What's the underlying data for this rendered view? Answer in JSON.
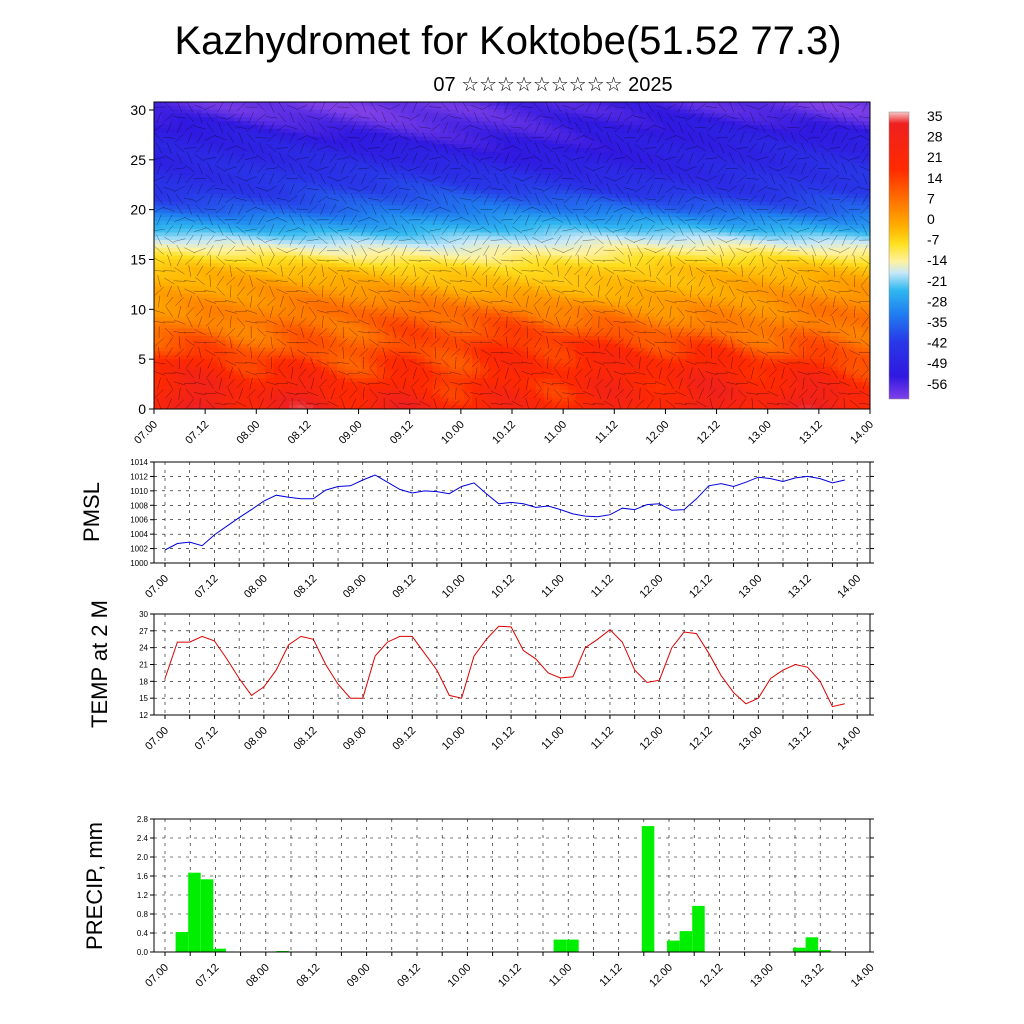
{
  "title": "Kazhydromet for Koktobe(51.52 77.3)",
  "subtitle": "07 ☆☆☆☆☆☆☆☆☆ 2025",
  "chart_data": [
    {
      "type": "heatmap",
      "name": "temperature-wind cross-section",
      "x_tick_labels": [
        "07.00",
        "07.12",
        "08.00",
        "08.12",
        "09.00",
        "09.12",
        "10.00",
        "10.12",
        "11.00",
        "11.12",
        "12.00",
        "12.12",
        "13.00",
        "13.12",
        "14.00"
      ],
      "y_ticks": [
        0,
        5,
        10,
        15,
        20,
        25,
        30
      ],
      "ylim": [
        0,
        30.8
      ],
      "colorbar_labels": [
        "35",
        "28",
        "21",
        "14",
        "7",
        "0",
        "-7",
        "-14",
        "-21",
        "-28",
        "-35",
        "-42",
        "-49",
        "-56"
      ],
      "colorbar_range": [
        -63,
        38
      ],
      "approx_temperature_by_level": {
        "levels": [
          0,
          5,
          10,
          14,
          16,
          18,
          20,
          22,
          25,
          30
        ],
        "temps": [
          25,
          19,
          11,
          1,
          -10,
          -25,
          -38,
          -45,
          -52,
          -60
        ]
      },
      "wind_barbs": true
    },
    {
      "type": "line",
      "ylabel": "PMSL",
      "color": "#0000dd",
      "ylim": [
        1000,
        1014
      ],
      "y_ticks": [
        1000,
        1002,
        1004,
        1006,
        1008,
        1010,
        1012,
        1014
      ],
      "x_tick_labels": [
        "07.00",
        "07.12",
        "08.00",
        "08.12",
        "09.00",
        "09.12",
        "10.00",
        "10.12",
        "11.00",
        "11.12",
        "12.00",
        "12.12",
        "13.00",
        "13.12",
        "14.00"
      ],
      "x_hours": [
        0,
        3,
        6,
        9,
        12,
        15,
        18,
        21,
        24,
        27,
        30,
        33,
        36,
        39,
        42,
        45,
        48,
        51,
        54,
        57,
        60,
        63,
        66,
        69,
        72,
        75,
        78,
        81,
        84,
        87,
        90,
        93,
        96,
        99,
        102,
        105,
        108,
        111,
        114,
        117,
        120,
        123,
        126,
        129,
        132,
        135,
        138,
        141,
        144,
        147,
        150,
        153,
        156,
        159,
        162,
        165
      ],
      "values": [
        1001.8,
        1002.7,
        1002.9,
        1002.4,
        1003.9,
        1005.1,
        1006.3,
        1007.4,
        1008.6,
        1009.4,
        1009.1,
        1008.9,
        1008.9,
        1010.1,
        1010.6,
        1010.7,
        1011.5,
        1012.2,
        1011.2,
        1010.2,
        1009.7,
        1010.0,
        1009.9,
        1009.6,
        1010.6,
        1011.1,
        1009.6,
        1008.2,
        1008.4,
        1008.2,
        1007.7,
        1007.9,
        1007.4,
        1006.8,
        1006.5,
        1006.4,
        1006.7,
        1007.6,
        1007.4,
        1008.1,
        1008.2,
        1007.3,
        1007.4,
        1008.9,
        1010.7,
        1011.0,
        1010.6,
        1011.2,
        1011.9,
        1011.7,
        1011.3,
        1011.8,
        1012.0,
        1011.7,
        1011.1,
        1011.5
      ]
    },
    {
      "type": "line",
      "ylabel": "TEMP at 2 M",
      "color": "#dd0000",
      "ylim": [
        12,
        30
      ],
      "y_ticks": [
        12,
        15,
        18,
        21,
        24,
        27,
        30
      ],
      "x_tick_labels": [
        "07.00",
        "07.12",
        "08.00",
        "08.12",
        "09.00",
        "09.12",
        "10.00",
        "10.12",
        "11.00",
        "11.12",
        "12.00",
        "12.12",
        "13.00",
        "13.12",
        "14.00"
      ],
      "x_hours": [
        0,
        3,
        6,
        9,
        12,
        15,
        18,
        21,
        24,
        27,
        30,
        33,
        36,
        39,
        42,
        45,
        48,
        51,
        54,
        57,
        60,
        63,
        66,
        69,
        72,
        75,
        78,
        81,
        84,
        87,
        90,
        93,
        96,
        99,
        102,
        105,
        108,
        111,
        114,
        117,
        120,
        123,
        126,
        129,
        132,
        135,
        138,
        141,
        144,
        147,
        150,
        153,
        156,
        159,
        162,
        165
      ],
      "values": [
        18.5,
        25.0,
        25.0,
        26.0,
        25.2,
        22.0,
        18.5,
        15.5,
        17.0,
        20.0,
        24.5,
        26.0,
        25.5,
        21.0,
        17.5,
        15.0,
        15.0,
        22.5,
        25.0,
        26.0,
        26.0,
        23.0,
        20.0,
        15.5,
        15.0,
        22.5,
        25.5,
        27.8,
        27.7,
        23.5,
        22.0,
        19.5,
        18.6,
        18.8,
        24.0,
        25.5,
        27.2,
        25.0,
        20.0,
        17.8,
        18.2,
        24.0,
        26.8,
        26.5,
        23.0,
        19.0,
        16.0,
        14.0,
        15.0,
        18.5,
        20.0,
        21.0,
        20.5,
        18.0,
        13.5,
        14.0
      ]
    },
    {
      "type": "bar",
      "ylabel": "PRECIP, mm",
      "color": "#00ee00",
      "ylim": [
        0,
        2.8
      ],
      "y_ticks": [
        "0.0",
        "0.4",
        "0.8",
        "1.2",
        "1.6",
        "2.0",
        "2.4",
        "2.8"
      ],
      "x_tick_labels": [
        "07.00",
        "07.12",
        "08.00",
        "08.12",
        "09.00",
        "09.12",
        "10.00",
        "10.12",
        "11.00",
        "11.12",
        "12.00",
        "12.12",
        "13.00",
        "13.12",
        "14.00"
      ],
      "x_hours": [
        3,
        6,
        9,
        12,
        27,
        93,
        96,
        114,
        120,
        123,
        126,
        150,
        153,
        156
      ],
      "values": [
        0.42,
        1.67,
        1.53,
        0.07,
        0.02,
        0.26,
        0.26,
        2.65,
        0.24,
        0.44,
        0.97,
        0.09,
        0.31,
        0.04
      ]
    }
  ]
}
